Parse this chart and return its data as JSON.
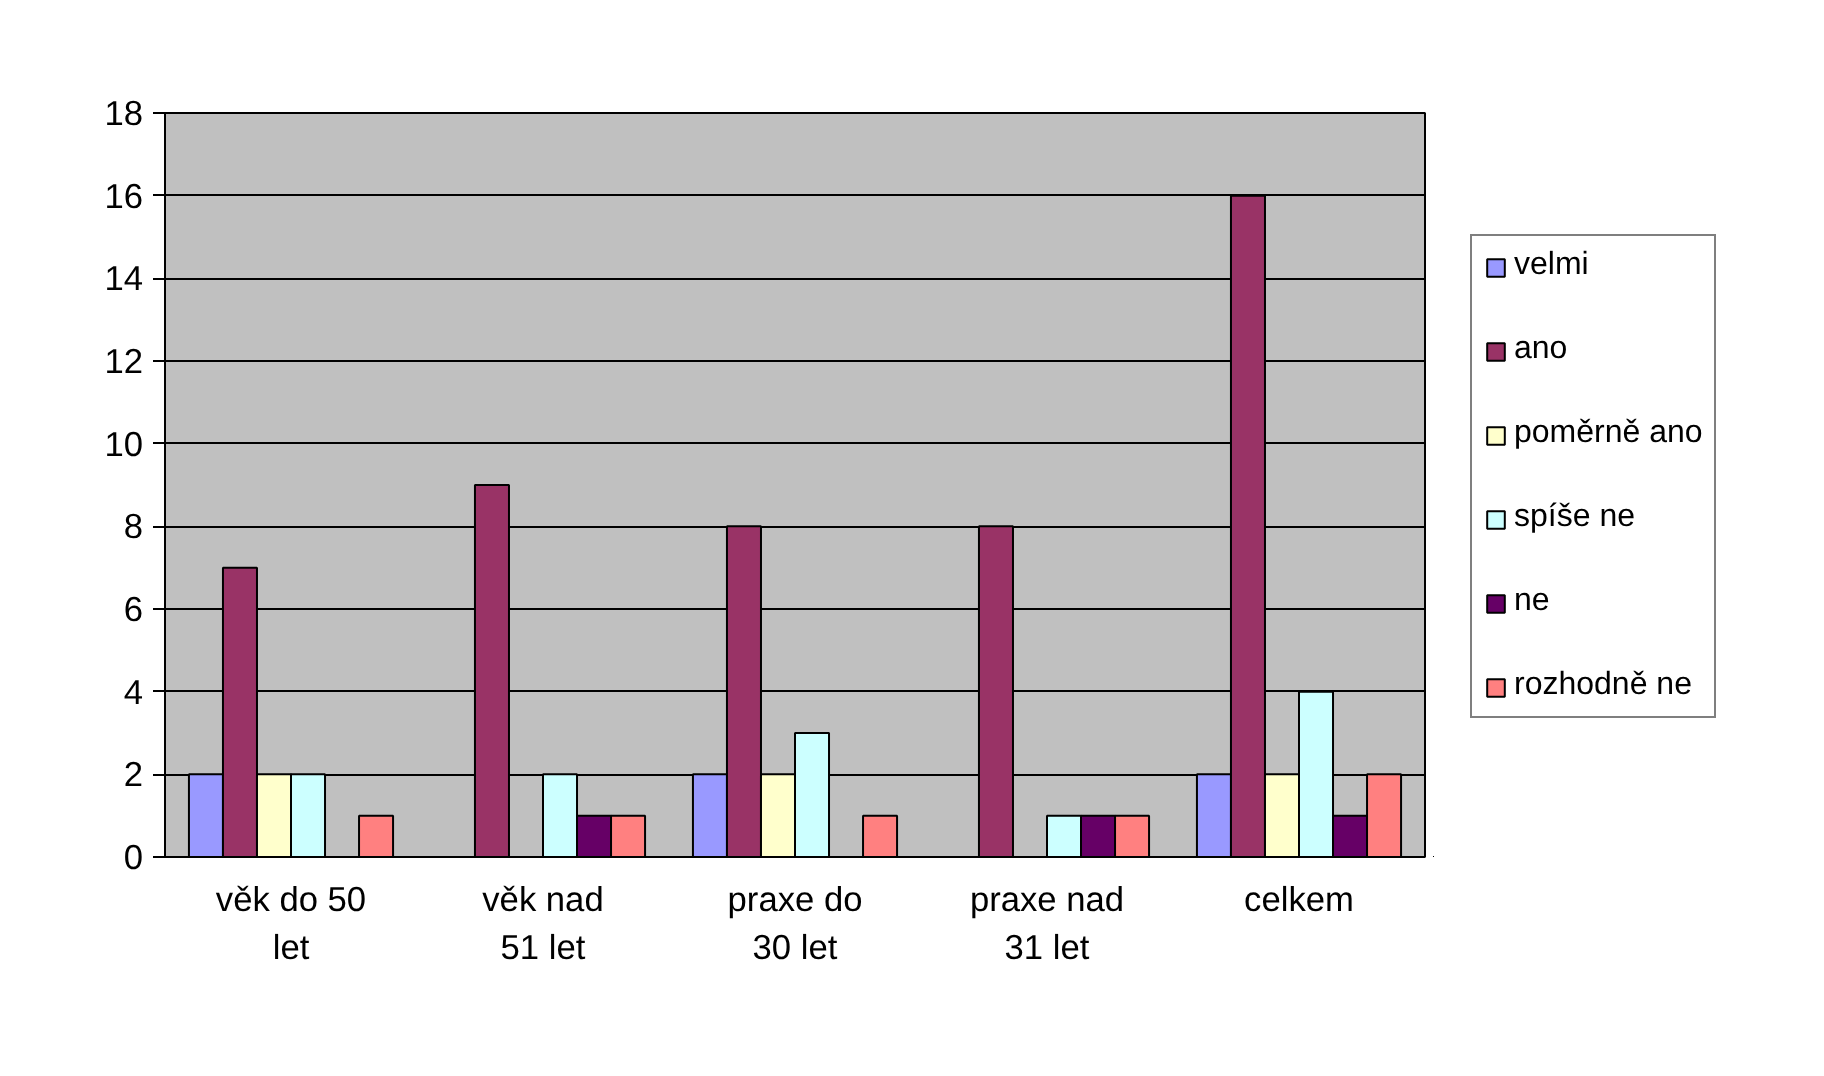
{
  "chart_data": {
    "type": "bar",
    "categories": [
      "věk do 50 let",
      "věk nad 51 let",
      "praxe do 30 let",
      "praxe nad 31 let",
      "celkem"
    ],
    "series": [
      {
        "name": "velmi",
        "color": "#9999ff",
        "values": [
          2,
          0,
          2,
          0,
          2
        ]
      },
      {
        "name": "ano",
        "color": "#993366",
        "values": [
          7,
          9,
          8,
          8,
          16
        ]
      },
      {
        "name": "poměrně ano",
        "color": "#ffffcc",
        "values": [
          2,
          0,
          2,
          0,
          2
        ]
      },
      {
        "name": "spíše ne",
        "color": "#ccffff",
        "values": [
          2,
          2,
          3,
          1,
          4
        ]
      },
      {
        "name": "ne",
        "color": "#660066",
        "values": [
          0,
          1,
          0,
          1,
          1
        ]
      },
      {
        "name": "rozhodně ne",
        "color": "#ff8080",
        "values": [
          1,
          1,
          1,
          1,
          2
        ]
      }
    ],
    "ylim": [
      0,
      18
    ],
    "yticks": [
      0,
      2,
      4,
      6,
      8,
      10,
      12,
      14,
      16,
      18
    ],
    "grid": "y",
    "legend": "right"
  }
}
